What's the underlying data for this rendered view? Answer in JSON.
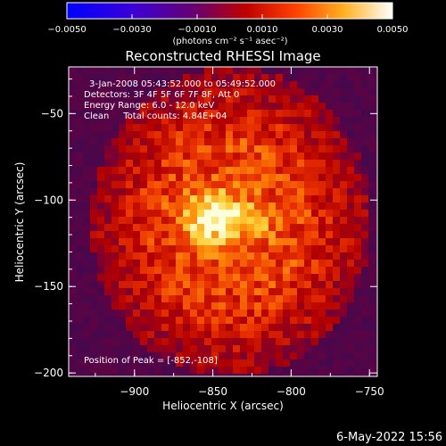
{
  "chart_data": {
    "type": "heatmap",
    "title": "Reconstructed RHESSI Image",
    "xlabel": "Heliocentric X (arcsec)",
    "ylabel": "Heliocentric Y (arcsec)",
    "xlim": [
      -942,
      -745
    ],
    "ylim": [
      -202,
      -23
    ],
    "xticks": [
      -900,
      -850,
      -800,
      -750
    ],
    "yticks": [
      -50,
      -100,
      -150,
      -200
    ],
    "xtick_labels": [
      "−900",
      "−850",
      "−800",
      "−750"
    ],
    "ytick_labels": [
      "−50",
      "−100",
      "−150",
      "−200"
    ],
    "colorbar": {
      "min": -0.005,
      "max": 0.005,
      "tick_values": [
        -0.005,
        -0.003,
        -0.001,
        0.001,
        0.003,
        0.005
      ],
      "tick_labels": [
        "−0.0050",
        "−0.0030",
        "−0.0010",
        "0.0010",
        "0.0030",
        "0.0050"
      ],
      "unit_label": "(photons cm⁻² s⁻¹ asec⁻²)"
    },
    "annotations": [
      "3-Jan-2008 05:43:52.000 to 05:49:52.000",
      "Detectors: 3F 4F 5F 6F 7F 8F, Att 0",
      "Energy Range: 6.0 - 12.0 keV",
      "Clean     Total counts: 4.84E+04"
    ],
    "peak_label": "Position of Peak = [-852,-108]",
    "peak": [
      -852,
      -108
    ],
    "footer": "6-May-2022 15:56",
    "colors": {
      "background": "#000000",
      "text": "#ffffff"
    }
  }
}
